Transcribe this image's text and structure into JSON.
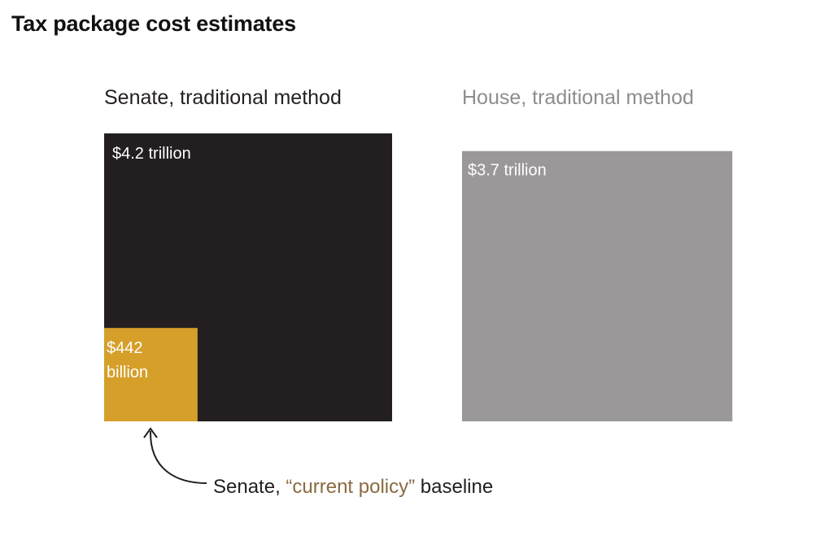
{
  "chart_data": {
    "type": "area-square",
    "title": "Tax package cost estimates",
    "unit": "billion USD",
    "series": [
      {
        "name": "Senate, traditional method",
        "value": 4200,
        "value_label": "$4.2 trillion",
        "color": "#231f20",
        "label_color": "#231f20"
      },
      {
        "name": "House, traditional method",
        "value": 3700,
        "value_label": "$3.7 trillion",
        "color": "#9b9899",
        "label_color": "#8f8c8d"
      },
      {
        "name": "Senate, “current policy” baseline",
        "value": 442,
        "value_label_lines": [
          "$442",
          "billion"
        ],
        "color": "#d59f2a",
        "nested_in": "Senate, traditional method"
      }
    ],
    "annotation": {
      "prefix": "Senate, ",
      "highlight": "“current policy”",
      "suffix": " baseline",
      "text_color": "#231f20",
      "highlight_color": "#8a6a3f",
      "arrow_icon": "curved-arrow-up-icon"
    }
  }
}
